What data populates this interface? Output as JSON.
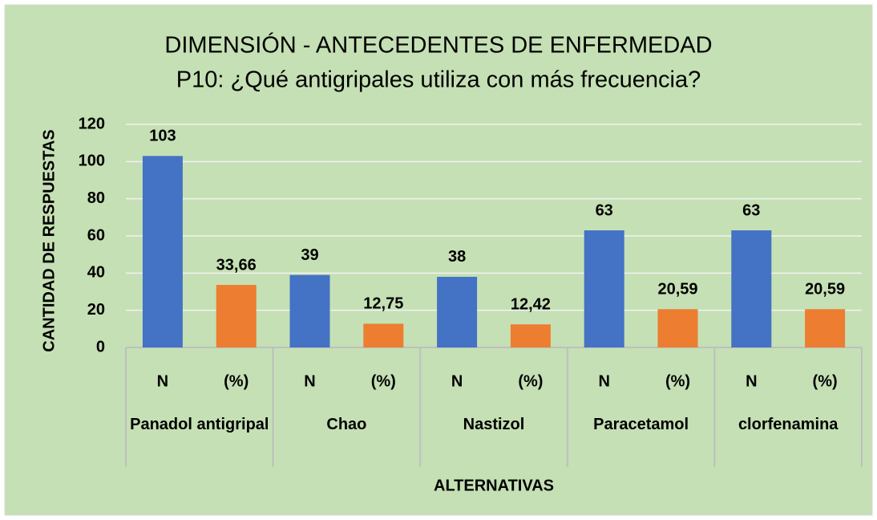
{
  "chart_data": {
    "type": "bar",
    "title": "DIMENSIÓN - ANTECEDENTES DE ENFERMEDAD",
    "subtitle": "P10: ¿Qué antigripales utiliza con más frecuencia?",
    "x_label": "ALTERNATIVAS",
    "y_label": "CANTIDAD DE RESPUESTAS",
    "categories": [
      "Panadol antigripal",
      "Chao",
      "Nastizol",
      "Paracetamol",
      "clorfenamina"
    ],
    "series": [
      {
        "name": "N",
        "color": "#4472c4",
        "values": [
          103,
          39,
          38,
          63,
          63
        ]
      },
      {
        "name": "(%)",
        "color": "#ed7d31",
        "values": [
          33.66,
          12.75,
          12.42,
          20.59,
          20.59
        ],
        "value_labels": [
          "33,66",
          "12,75",
          "12,42",
          "20,59",
          "20,59"
        ]
      }
    ],
    "ylim": [
      0,
      120
    ],
    "yticks": [
      0,
      20,
      40,
      60,
      80,
      100,
      120
    ],
    "grid": true
  }
}
